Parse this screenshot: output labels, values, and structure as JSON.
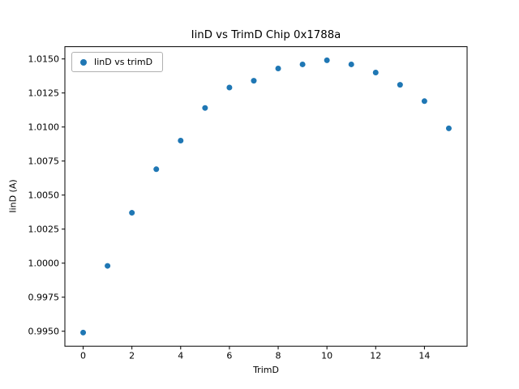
{
  "chart_data": {
    "type": "scatter",
    "title": "IinD vs TrimD Chip 0x1788a",
    "xlabel": "TrimD",
    "ylabel": "IinD (A)",
    "legend": [
      "IinD vs trimD"
    ],
    "legend_position": "upper left",
    "marker_color": "#1f77b4",
    "x": [
      0,
      1,
      2,
      3,
      4,
      5,
      6,
      7,
      8,
      9,
      10,
      11,
      12,
      13,
      14,
      15
    ],
    "y": [
      0.9949,
      0.9998,
      1.0037,
      1.0069,
      1.009,
      1.0114,
      1.0129,
      1.0134,
      1.0143,
      1.0146,
      1.0149,
      1.0146,
      1.014,
      1.0131,
      1.0119,
      1.0099
    ],
    "xlim": [
      -0.75,
      15.75
    ],
    "ylim": [
      0.9939,
      1.0159
    ],
    "xticks": [
      0,
      2,
      4,
      6,
      8,
      10,
      12,
      14
    ],
    "xticklabels": [
      "0",
      "2",
      "4",
      "6",
      "8",
      "10",
      "12",
      "14"
    ],
    "yticks": [
      0.995,
      0.9975,
      1.0,
      1.0025,
      1.005,
      1.0075,
      1.01,
      1.0125,
      1.015
    ],
    "yticklabels": [
      "0.9950",
      "0.9975",
      "1.0000",
      "1.0025",
      "1.0050",
      "1.0075",
      "1.0100",
      "1.0125",
      "1.0150"
    ],
    "grid": false
  }
}
